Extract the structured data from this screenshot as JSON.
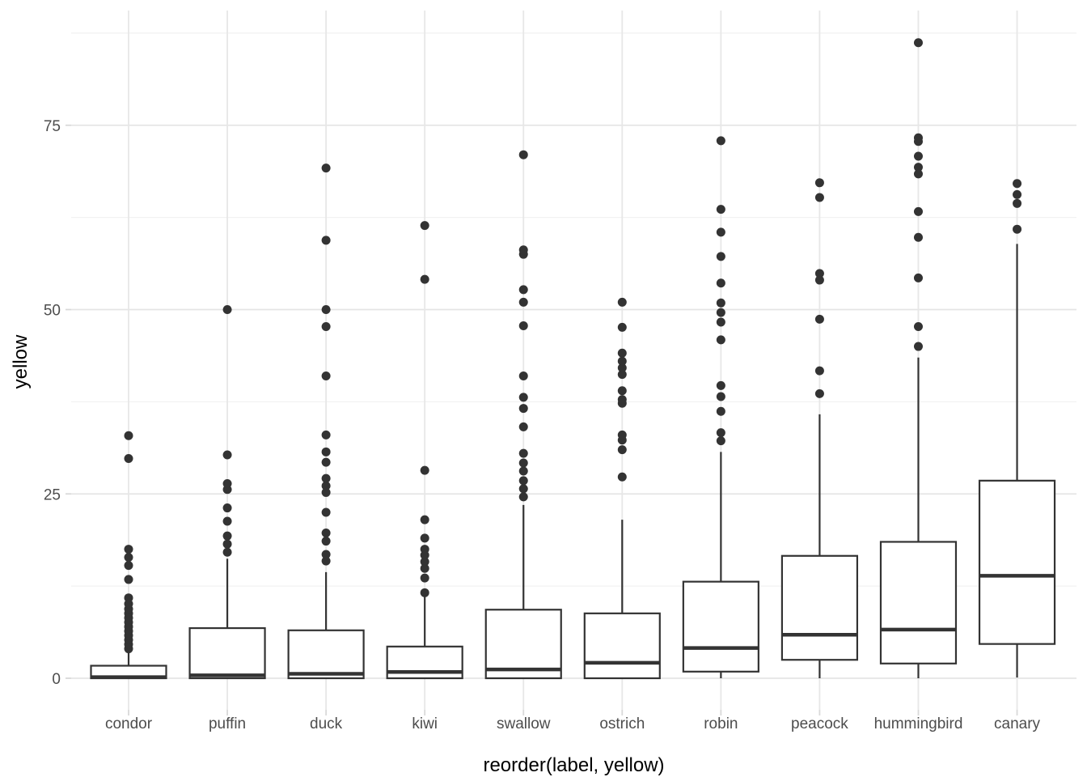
{
  "figure": {
    "background": "#FFFFFF",
    "kind": "ggplot-style boxplot, minimal theme, no legend, no title"
  },
  "style": {
    "ink_color": "#333333",
    "box_fill": "#FFFFFF",
    "grid_major_color": "#E5E5E5",
    "grid_minor_color": "#F2F2F2",
    "grid_vertical_color": "#E7E7E7",
    "tick_mark_color": "#D9D9D9",
    "tick_label_color": "#4D4D4D",
    "axis_title_color": "#000000"
  },
  "chart_data": {
    "type": "boxplot",
    "title": "",
    "xlabel": "reorder(label, yellow)",
    "ylabel": "yellow",
    "legend": "none",
    "grid": "horizontal major+minor, one vertical gridline per category",
    "ylim": [
      -4.3,
      90.5
    ],
    "yticks_major": [
      0,
      25,
      50,
      75
    ],
    "yticks_minor": [
      12.5,
      37.5,
      62.5,
      87.5
    ],
    "categories": [
      "condor",
      "puffin",
      "duck",
      "kiwi",
      "swallow",
      "ostrich",
      "robin",
      "peacock",
      "hummingbird",
      "canary"
    ],
    "boxes": [
      {
        "label": "condor",
        "whisker_low": 0,
        "q1": 0,
        "median": 0.15,
        "q3": 1.7,
        "whisker_high": 3.5,
        "outliers": [
          4.0,
          4.6,
          5.2,
          5.8,
          6.4,
          7.0,
          7.6,
          8.2,
          8.8,
          9.4,
          10.1,
          10.9,
          13.4,
          15.3,
          16.4,
          17.5,
          29.8,
          32.9
        ]
      },
      {
        "label": "puffin",
        "whisker_low": 0,
        "q1": 0,
        "median": 0.4,
        "q3": 6.8,
        "whisker_high": 16.2,
        "outliers": [
          17.1,
          18.2,
          19.3,
          21.3,
          23.1,
          25.6,
          26.4,
          30.3,
          50.0
        ]
      },
      {
        "label": "duck",
        "whisker_low": 0,
        "q1": 0,
        "median": 0.6,
        "q3": 6.5,
        "whisker_high": 14.4,
        "outliers": [
          15.9,
          16.8,
          18.6,
          19.7,
          22.5,
          25.2,
          26.1,
          27.1,
          29.3,
          30.7,
          33.0,
          41.0,
          47.7,
          50.0,
          59.4,
          69.2
        ]
      },
      {
        "label": "kiwi",
        "whisker_low": 0,
        "q1": 0,
        "median": 0.85,
        "q3": 4.3,
        "whisker_high": 11.1,
        "outliers": [
          11.6,
          13.6,
          14.9,
          15.8,
          16.7,
          17.5,
          19.0,
          21.5,
          28.2,
          54.1,
          61.4
        ]
      },
      {
        "label": "swallow",
        "whisker_low": 0,
        "q1": 0,
        "median": 1.2,
        "q3": 9.3,
        "whisker_high": 23.5,
        "outliers": [
          24.6,
          25.7,
          26.8,
          28.1,
          29.2,
          30.5,
          34.1,
          36.6,
          38.1,
          41.0,
          47.8,
          51.0,
          52.7,
          57.5,
          58.1,
          71.0
        ]
      },
      {
        "label": "ostrich",
        "whisker_low": 0,
        "q1": 0,
        "median": 2.1,
        "q3": 8.8,
        "whisker_high": 21.5,
        "outliers": [
          27.3,
          31.0,
          32.3,
          33.0,
          37.3,
          37.8,
          39.0,
          41.2,
          42.1,
          43.0,
          44.1,
          47.6,
          51.0
        ]
      },
      {
        "label": "robin",
        "whisker_low": 0,
        "q1": 0.9,
        "median": 4.1,
        "q3": 13.1,
        "whisker_high": 30.7,
        "outliers": [
          32.2,
          33.3,
          36.2,
          38.2,
          39.7,
          45.9,
          48.3,
          49.6,
          50.9,
          53.6,
          57.2,
          60.5,
          63.6,
          72.9
        ]
      },
      {
        "label": "peacock",
        "whisker_low": 0,
        "q1": 2.5,
        "median": 5.9,
        "q3": 16.6,
        "whisker_high": 35.8,
        "outliers": [
          38.6,
          41.7,
          48.7,
          54.0,
          54.9,
          65.2,
          67.2
        ]
      },
      {
        "label": "hummingbird",
        "whisker_low": 0,
        "q1": 2.0,
        "median": 6.6,
        "q3": 18.5,
        "whisker_high": 43.5,
        "outliers": [
          45.0,
          47.7,
          54.3,
          59.8,
          63.3,
          68.4,
          69.3,
          70.8,
          72.8,
          73.3,
          86.2
        ]
      },
      {
        "label": "canary",
        "whisker_low": 0.1,
        "q1": 4.65,
        "median": 13.9,
        "q3": 26.8,
        "whisker_high": 58.9,
        "outliers": [
          60.9,
          64.4,
          65.6,
          67.1
        ]
      }
    ]
  }
}
